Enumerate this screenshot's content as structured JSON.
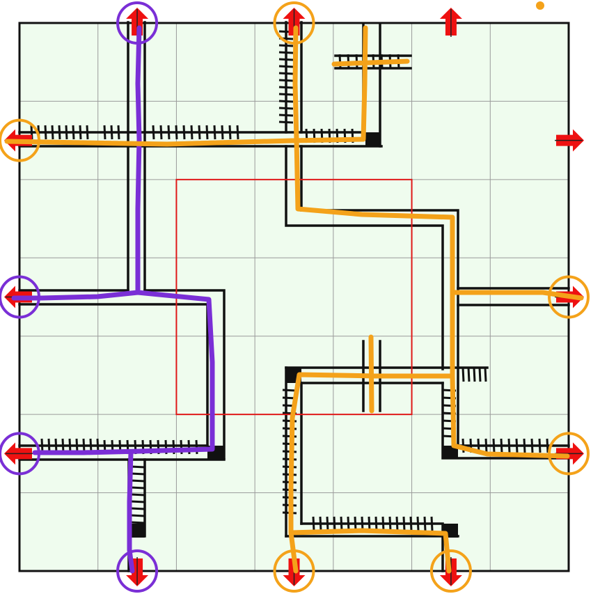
{
  "board": {
    "title": "",
    "grid_columns": 7,
    "grid_rows": 7,
    "colors": {
      "background": "#effcee",
      "grid_line": "#9a9a9a",
      "border": "#111111",
      "track": "#111111",
      "track_fill": "#d4dfd4",
      "center_outline": "#e01818",
      "exit_arrow": "#ee1111",
      "route_purple": "#7a2fd6",
      "route_orange": "#f4a21a"
    },
    "center_region": {
      "col_start": 2,
      "col_end": 5,
      "row_start": 2,
      "row_end": 5
    },
    "exits": [
      {
        "id": "top-1",
        "side": "top",
        "index": 1,
        "marked_by": "purple"
      },
      {
        "id": "top-3",
        "side": "top",
        "index": 3,
        "marked_by": "orange"
      },
      {
        "id": "top-5",
        "side": "top",
        "index": 5,
        "marked_by": "none"
      },
      {
        "id": "left-1",
        "side": "left",
        "index": 1,
        "marked_by": "orange"
      },
      {
        "id": "left-3",
        "side": "left",
        "index": 3,
        "marked_by": "purple"
      },
      {
        "id": "left-5",
        "side": "left",
        "index": 5,
        "marked_by": "purple"
      },
      {
        "id": "right-1",
        "side": "right",
        "index": 1,
        "marked_by": "none"
      },
      {
        "id": "right-3",
        "side": "right",
        "index": 3,
        "marked_by": "orange"
      },
      {
        "id": "right-5",
        "side": "right",
        "index": 5,
        "marked_by": "orange"
      },
      {
        "id": "bottom-1",
        "side": "bottom",
        "index": 1,
        "marked_by": "purple"
      },
      {
        "id": "bottom-3",
        "side": "bottom",
        "index": 3,
        "marked_by": "orange"
      },
      {
        "id": "bottom-5",
        "side": "bottom",
        "index": 5,
        "marked_by": "orange"
      }
    ],
    "routes": [
      {
        "name": "",
        "color": "purple",
        "connects": [
          "top-1",
          "left-3",
          "left-5",
          "bottom-1"
        ]
      },
      {
        "name": "",
        "color": "orange",
        "connects": [
          "left-1",
          "top-3",
          "right-3",
          "right-5",
          "bottom-3",
          "bottom-5"
        ]
      }
    ]
  }
}
